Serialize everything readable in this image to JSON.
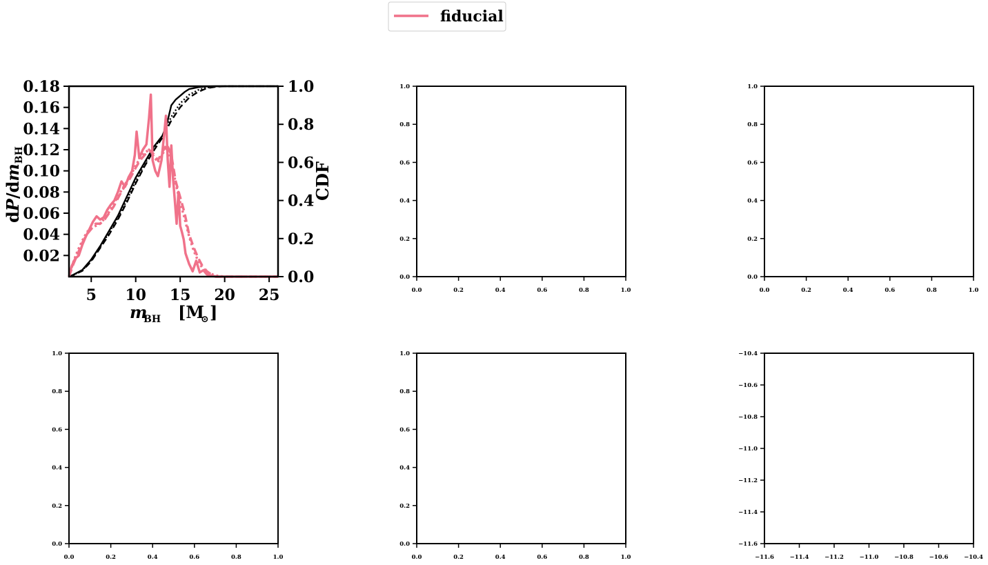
{
  "legend": {
    "label": "fiducial",
    "color": "#f0728a"
  },
  "chart_data": [
    {
      "type": "line",
      "xlabel": "m_BH [M_sun]",
      "ylabel": "dP/dm_BH",
      "ylabel_right": "CDF",
      "xlim": [
        2.5,
        26
      ],
      "ylim": [
        0,
        0.18
      ],
      "ylim_right": [
        0,
        1.0
      ],
      "xticks": [
        "5",
        "10",
        "15",
        "20",
        "25"
      ],
      "xtick_values": [
        5,
        10,
        15,
        20,
        25
      ],
      "yticks": [
        "0.02",
        "0.04",
        "0.06",
        "0.08",
        "0.10",
        "0.12",
        "0.14",
        "0.16",
        "0.18"
      ],
      "ytick_values": [
        0.02,
        0.04,
        0.06,
        0.08,
        0.1,
        0.12,
        0.14,
        0.16,
        0.18
      ],
      "yticks_right": [
        "0.0",
        "0.2",
        "0.4",
        "0.6",
        "0.8",
        "1.0"
      ],
      "ytick_values_right": [
        0.0,
        0.2,
        0.4,
        0.6,
        0.8,
        1.0
      ],
      "pdf_series": [
        {
          "style": "solid",
          "color": "#f0728a",
          "x": [
            2.5,
            2.8,
            3.2,
            3.6,
            4.0,
            4.4,
            4.8,
            5.2,
            5.6,
            6.0,
            6.4,
            6.8,
            7.2,
            7.6,
            8.0,
            8.4,
            8.8,
            9.2,
            9.6,
            9.9,
            10.1,
            10.4,
            10.8,
            11.2,
            11.5,
            11.7,
            11.9,
            12.2,
            12.5,
            12.9,
            13.2,
            13.4,
            13.6,
            13.8,
            14.0,
            14.2,
            14.4,
            14.6,
            14.8,
            15.0,
            15.2,
            15.4,
            15.6,
            16.0,
            16.4,
            16.8,
            17.2,
            17.6,
            18.0,
            18.5,
            19.0,
            20.0,
            22.0,
            24.0,
            26.0
          ],
          "y": [
            0.0,
            0.01,
            0.017,
            0.02,
            0.03,
            0.038,
            0.045,
            0.052,
            0.057,
            0.054,
            0.056,
            0.063,
            0.068,
            0.072,
            0.08,
            0.09,
            0.085,
            0.094,
            0.1,
            0.115,
            0.137,
            0.112,
            0.12,
            0.125,
            0.15,
            0.172,
            0.11,
            0.1,
            0.095,
            0.11,
            0.135,
            0.152,
            0.11,
            0.085,
            0.124,
            0.092,
            0.072,
            0.05,
            0.08,
            0.048,
            0.042,
            0.035,
            0.022,
            0.012,
            0.005,
            0.015,
            0.004,
            0.006,
            0.002,
            0.001,
            0.0,
            0.0,
            0.0,
            0.0,
            0.0
          ]
        },
        {
          "style": "dashed",
          "color": "#f0728a",
          "x": [
            2.5,
            3.0,
            3.5,
            4.0,
            4.5,
            5.0,
            5.5,
            6.0,
            6.5,
            7.0,
            7.5,
            8.0,
            8.5,
            9.0,
            9.5,
            10.0,
            10.5,
            11.0,
            11.5,
            12.0,
            12.5,
            13.0,
            13.5,
            14.0,
            14.5,
            15.0,
            15.5,
            16.0,
            16.5,
            17.0,
            17.5,
            18.0,
            18.5,
            19.0,
            20.0,
            22.0,
            26.0
          ],
          "y": [
            0.0,
            0.012,
            0.022,
            0.032,
            0.04,
            0.045,
            0.05,
            0.05,
            0.054,
            0.06,
            0.066,
            0.074,
            0.082,
            0.088,
            0.095,
            0.103,
            0.11,
            0.115,
            0.12,
            0.116,
            0.11,
            0.118,
            0.125,
            0.115,
            0.09,
            0.075,
            0.06,
            0.04,
            0.028,
            0.018,
            0.01,
            0.005,
            0.002,
            0.0,
            0.0,
            0.0,
            0.0
          ]
        },
        {
          "style": "dotted",
          "color": "#f0728a",
          "x": [
            2.5,
            3.0,
            3.5,
            4.0,
            4.5,
            5.0,
            5.5,
            6.0,
            6.5,
            7.0,
            7.5,
            8.0,
            8.5,
            9.0,
            9.5,
            10.0,
            10.5,
            11.0,
            11.5,
            12.0,
            12.5,
            13.0,
            13.5,
            14.0,
            14.5,
            15.0,
            15.5,
            16.0,
            16.5,
            17.0,
            17.5,
            18.0,
            19.0,
            20.0,
            26.0
          ],
          "y": [
            0.0,
            0.014,
            0.025,
            0.034,
            0.042,
            0.046,
            0.048,
            0.05,
            0.055,
            0.061,
            0.068,
            0.076,
            0.083,
            0.09,
            0.097,
            0.105,
            0.112,
            0.117,
            0.12,
            0.114,
            0.108,
            0.116,
            0.122,
            0.11,
            0.088,
            0.07,
            0.055,
            0.038,
            0.025,
            0.015,
            0.008,
            0.004,
            0.001,
            0.0,
            0.0
          ]
        }
      ],
      "cdf_series": [
        {
          "style": "solid",
          "color": "#000000",
          "x": [
            2.5,
            3.0,
            4.0,
            5.0,
            6.0,
            7.0,
            8.0,
            9.0,
            10.0,
            11.0,
            12.0,
            13.0,
            13.5,
            14.0,
            14.5,
            15.0,
            15.5,
            16.0,
            16.5,
            17.0,
            18.0,
            19.0,
            20.0,
            22.0,
            26.0
          ],
          "y": [
            0.0,
            0.01,
            0.035,
            0.09,
            0.16,
            0.24,
            0.32,
            0.42,
            0.52,
            0.6,
            0.68,
            0.74,
            0.8,
            0.9,
            0.93,
            0.95,
            0.97,
            0.985,
            0.99,
            0.995,
            0.999,
            1.0,
            1.0,
            1.0,
            1.0
          ]
        },
        {
          "style": "dashed",
          "color": "#000000",
          "x": [
            2.5,
            3.0,
            4.0,
            5.0,
            6.0,
            7.0,
            8.0,
            9.0,
            10.0,
            11.0,
            12.0,
            13.0,
            14.0,
            15.0,
            16.0,
            17.0,
            18.0,
            19.0,
            20.0,
            22.0,
            26.0
          ],
          "y": [
            0.0,
            0.008,
            0.03,
            0.08,
            0.15,
            0.22,
            0.3,
            0.39,
            0.49,
            0.58,
            0.66,
            0.73,
            0.82,
            0.89,
            0.94,
            0.97,
            0.99,
            0.997,
            1.0,
            1.0,
            1.0
          ]
        },
        {
          "style": "dotted",
          "color": "#000000",
          "x": [
            2.5,
            3.0,
            4.0,
            5.0,
            6.0,
            7.0,
            8.0,
            9.0,
            10.0,
            11.0,
            12.0,
            13.0,
            14.0,
            15.0,
            16.0,
            17.0,
            18.0,
            19.0,
            20.0,
            26.0
          ],
          "y": [
            0.0,
            0.009,
            0.032,
            0.085,
            0.155,
            0.23,
            0.31,
            0.4,
            0.5,
            0.59,
            0.67,
            0.74,
            0.84,
            0.91,
            0.955,
            0.98,
            0.993,
            0.999,
            1.0,
            1.0
          ]
        }
      ]
    },
    {
      "type": "empty",
      "xticks": [
        "0.0",
        "0.2",
        "0.4",
        "0.6",
        "0.8",
        "1.0"
      ],
      "yticks": [
        "0.0",
        "0.2",
        "0.4",
        "0.6",
        "0.8",
        "1.0"
      ],
      "xlim": [
        0,
        1
      ],
      "ylim": [
        0,
        1
      ]
    },
    {
      "type": "empty",
      "xticks": [
        "0.0",
        "0.2",
        "0.4",
        "0.6",
        "0.8",
        "1.0"
      ],
      "yticks": [
        "0.0",
        "0.2",
        "0.4",
        "0.6",
        "0.8",
        "1.0"
      ],
      "xlim": [
        0,
        1
      ],
      "ylim": [
        0,
        1
      ]
    },
    {
      "type": "empty",
      "xticks": [
        "0.0",
        "0.2",
        "0.4",
        "0.6",
        "0.8",
        "1.0"
      ],
      "yticks": [
        "0.0",
        "0.2",
        "0.4",
        "0.6",
        "0.8",
        "1.0"
      ],
      "xlim": [
        0,
        1
      ],
      "ylim": [
        0,
        1
      ]
    },
    {
      "type": "empty",
      "xticks": [
        "0.0",
        "0.2",
        "0.4",
        "0.6",
        "0.8",
        "1.0"
      ],
      "yticks": [
        "0.0",
        "0.2",
        "0.4",
        "0.6",
        "0.8",
        "1.0"
      ],
      "xlim": [
        0,
        1
      ],
      "ylim": [
        0,
        1
      ]
    },
    {
      "type": "empty",
      "xticks": [
        "−11.6",
        "−11.4",
        "−11.2",
        "−11.0",
        "−10.8",
        "−10.6",
        "−10.4"
      ],
      "yticks": [
        "−11.6",
        "−11.4",
        "−11.2",
        "−11.0",
        "−10.8",
        "−10.6",
        "−10.4"
      ],
      "xlim": [
        -11.6,
        -10.4
      ],
      "ylim": [
        -11.6,
        -10.4
      ]
    }
  ]
}
